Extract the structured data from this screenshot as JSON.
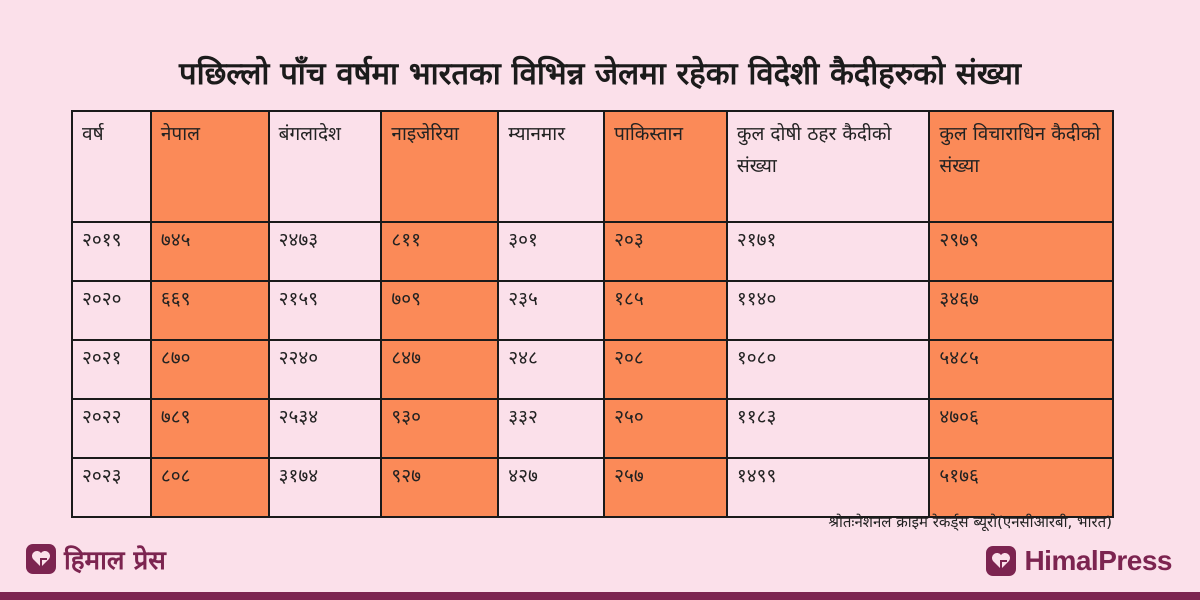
{
  "title": "पछिल्लो पाँच वर्षमा भारतका विभिन्न जेलमा रहेका विदेशी कैदीहरुको संख्या",
  "table": {
    "headers": [
      "वर्ष",
      "नेपाल",
      "बंगलादेश",
      "नाइजेरिया",
      "म्यानमार",
      "पाकिस्तान",
      "कुल दोषी ठहर कैदीको संख्या",
      "कुल विचाराधिन कैदीको संख्या"
    ],
    "rows": [
      [
        "२०१९",
        "७४५",
        "२४७३",
        "८११",
        "३०१",
        "२०३",
        "२१७१",
        "२९७९"
      ],
      [
        "२०२०",
        "६६९",
        "२१५९",
        "७०९",
        "२३५",
        "१८५",
        "११४०",
        "३४६७"
      ],
      [
        "२०२१",
        "८७०",
        "२२४०",
        "८४७",
        "२४८",
        "२०८",
        "१०८०",
        "५४८५"
      ],
      [
        "२०२२",
        "७८९",
        "२५३४",
        "९३०",
        "३३२",
        "२५०",
        "११८३",
        "४७०६"
      ],
      [
        "२०२३",
        "८०८",
        "३१७४",
        "९२७",
        "४२७",
        "२५७",
        "१४९९",
        "५१७६"
      ]
    ]
  },
  "source": "श्रोतःनेशनल क्राइम रेकर्ड्स ब्यूरो(एनसीआरबी, भारत)",
  "logo_left": "हिमाल प्रेस",
  "logo_right": "HimalPress",
  "colors": {
    "background": "#fbe0ea",
    "highlight": "#fb8a58",
    "brand": "#7c2450"
  },
  "icons": {
    "logo": "heart-in-square-icon"
  }
}
